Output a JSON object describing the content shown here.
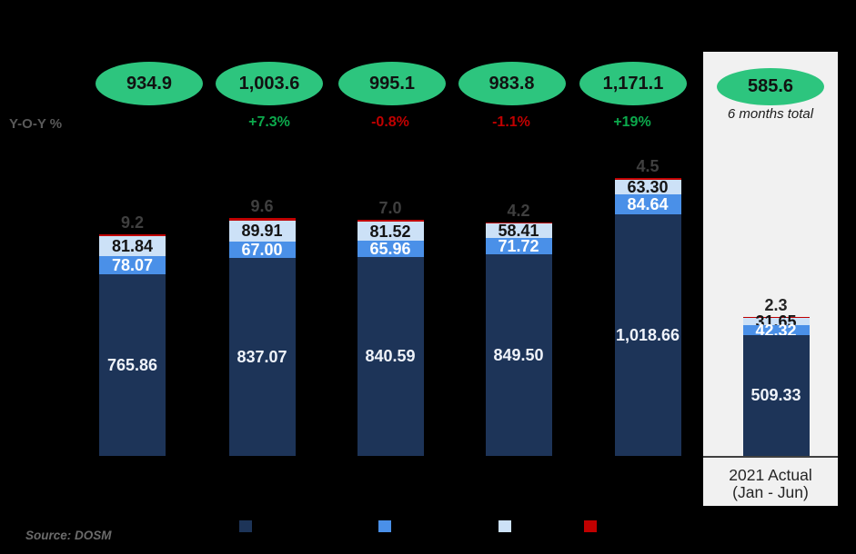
{
  "yoy": {
    "label": "Y-O-Y %"
  },
  "source": "Source: DOSM",
  "panel": {
    "note": "6 months total",
    "caption_line1": "2021 Actual",
    "caption_line2": "(Jan - Jun)"
  },
  "colors": {
    "background": "#000000",
    "navy": "#1D3458",
    "medium_blue": "#4A90E8",
    "light_blue": "#CCE1F7",
    "red": "#C00000",
    "oval_green": "#2DC57E",
    "yoy_positive": "#0CA94C",
    "yoy_negative": "#C00000",
    "bar_top_label": "#3F3F3F",
    "bar_top_label_on_panel": "#262626",
    "navy_text": "#EFF3FA",
    "medium_text": "#FFFFFF",
    "light_text": "#141414",
    "panel_bg": "#F1F1F1",
    "axis_line": "#404040"
  },
  "chart_data": {
    "type": "bar",
    "stacked": true,
    "grid": false,
    "legend_position": "bottom",
    "series_order_bottom_to_top": [
      "navy",
      "medium_blue",
      "light_blue",
      "red"
    ],
    "legend_swatches": [
      "navy",
      "medium_blue",
      "light_blue",
      "red"
    ],
    "bars": [
      {
        "oval_total": "934.9",
        "yoy": "",
        "top_label": "9.2",
        "navy": {
          "value": 765.86,
          "label": "765.86"
        },
        "medium_blue": {
          "value": 78.07,
          "label": "78.07"
        },
        "light_blue": {
          "value": 81.84,
          "label": "81.84"
        },
        "red": {
          "value": 9.2,
          "label": ""
        }
      },
      {
        "oval_total": "1,003.6",
        "yoy": "+7.3%",
        "top_label": "9.6",
        "navy": {
          "value": 837.07,
          "label": "837.07"
        },
        "medium_blue": {
          "value": 67.0,
          "label": "67.00"
        },
        "light_blue": {
          "value": 89.91,
          "label": "89.91"
        },
        "red": {
          "value": 9.6,
          "label": ""
        }
      },
      {
        "oval_total": "995.1",
        "yoy": "-0.8%",
        "top_label": "7.0",
        "navy": {
          "value": 840.59,
          "label": "840.59"
        },
        "medium_blue": {
          "value": 65.96,
          "label": "65.96"
        },
        "light_blue": {
          "value": 81.52,
          "label": "81.52"
        },
        "red": {
          "value": 7.0,
          "label": ""
        }
      },
      {
        "oval_total": "983.8",
        "yoy": "-1.1%",
        "top_label": "4.2",
        "navy": {
          "value": 849.5,
          "label": "849.50"
        },
        "medium_blue": {
          "value": 71.72,
          "label": "71.72"
        },
        "light_blue": {
          "value": 58.41,
          "label": "58.41"
        },
        "red": {
          "value": 4.2,
          "label": ""
        }
      },
      {
        "oval_total": "1,171.1",
        "yoy": "+19%",
        "top_label": "4.5",
        "navy": {
          "value": 1018.66,
          "label": "1,018.66"
        },
        "medium_blue": {
          "value": 84.64,
          "label": "84.64"
        },
        "light_blue": {
          "value": 63.3,
          "label": "63.30"
        },
        "red": {
          "value": 4.5,
          "label": ""
        }
      },
      {
        "oval_total": "585.6",
        "yoy": "",
        "top_label": "2.3",
        "navy": {
          "value": 509.33,
          "label": "509.33"
        },
        "medium_blue": {
          "value": 42.32,
          "label": "42.32"
        },
        "light_blue": {
          "value": 31.65,
          "label": "31.65"
        },
        "red": {
          "value": 2.3,
          "label": ""
        }
      }
    ]
  }
}
